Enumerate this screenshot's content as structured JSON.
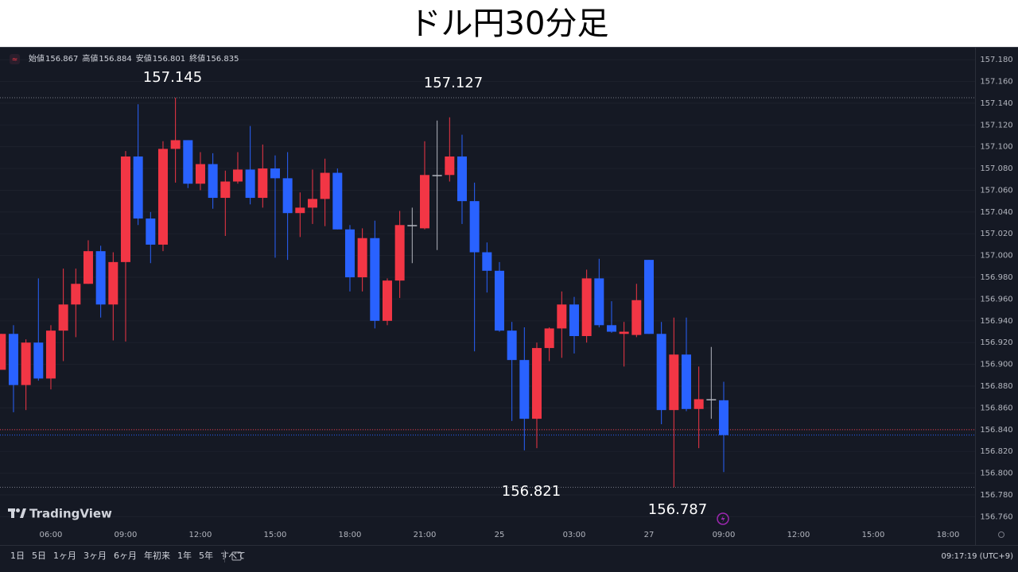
{
  "chart_data": {
    "type": "candlestick",
    "title": "ドル円30分足",
    "legend": [
      {
        "label": "始値",
        "value": 156.867
      },
      {
        "label": "高値",
        "value": 156.884
      },
      {
        "label": "安値",
        "value": 156.801
      },
      {
        "label": "終値",
        "value": 156.835
      }
    ],
    "categories": [
      null,
      null,
      null,
      null,
      "06:00",
      null,
      null,
      null,
      null,
      null,
      "09:00",
      null,
      null,
      null,
      null,
      null,
      "12:00",
      null,
      null,
      null,
      null,
      null,
      "15:00",
      null,
      null,
      null,
      null,
      null,
      "18:00",
      null,
      null,
      null,
      null,
      null,
      "21:00",
      null,
      null,
      null,
      null,
      null,
      "25",
      null,
      null,
      null,
      null,
      null,
      "03:00",
      null,
      null,
      null,
      null,
      null,
      "27",
      null,
      null,
      null,
      null,
      null,
      "09:00",
      null,
      null,
      null,
      null,
      null,
      "12:00",
      null,
      null,
      null,
      null,
      null,
      "15:00",
      null,
      null,
      null,
      null,
      null,
      "18:00"
    ],
    "open": [
      156.895,
      156.928,
      156.881,
      156.92,
      156.887,
      156.931,
      156.955,
      156.974,
      157.004,
      156.955,
      156.994,
      157.091,
      157.034,
      157.01,
      157.098,
      157.106,
      157.066,
      157.084,
      157.053,
      157.068,
      157.079,
      157.053,
      157.08,
      157.071,
      157.039,
      157.044,
      157.052,
      157.076,
      157.024,
      156.98,
      157.016,
      156.94,
      156.977,
      157.028,
      157.025,
      157.074,
      157.074,
      157.091,
      157.05,
      157.003,
      156.986,
      156.931,
      156.904,
      156.85,
      156.915,
      156.933,
      156.955,
      156.926,
      156.979,
      156.936,
      156.928,
      156.927,
      156.996,
      156.928,
      156.858,
      156.909,
      156.859,
      156.868,
      156.867,
      null,
      null,
      null,
      null,
      null,
      null,
      null,
      null,
      null,
      null,
      null,
      null,
      null,
      null,
      null,
      null,
      null,
      null
    ],
    "high": [
      156.928,
      156.936,
      156.923,
      156.979,
      156.936,
      156.988,
      156.988,
      157.014,
      157.009,
      157.003,
      157.096,
      157.139,
      157.04,
      157.105,
      157.145,
      157.106,
      157.095,
      157.094,
      157.078,
      157.095,
      157.119,
      157.102,
      157.092,
      157.095,
      157.058,
      157.079,
      157.089,
      157.08,
      157.028,
      157.025,
      157.032,
      156.979,
      157.041,
      157.044,
      157.105,
      157.124,
      157.127,
      157.111,
      157.067,
      157.012,
      156.994,
      156.939,
      156.934,
      156.92,
      156.934,
      156.967,
      156.962,
      156.987,
      156.997,
      156.958,
      156.939,
      156.974,
      156.996,
      156.939,
      156.943,
      156.943,
      156.898,
      156.916,
      156.884,
      null,
      null,
      null,
      null,
      null,
      null,
      null,
      null,
      null,
      null,
      null,
      null,
      null,
      null,
      null,
      null,
      null,
      null
    ],
    "low": [
      156.895,
      156.856,
      156.858,
      156.885,
      156.877,
      156.903,
      156.925,
      156.974,
      156.943,
      156.922,
      156.921,
      157.028,
      156.993,
      157.004,
      157.067,
      157.062,
      157.06,
      157.043,
      157.018,
      157.066,
      157.047,
      157.044,
      156.998,
      156.996,
      157.017,
      157.029,
      157.027,
      157.024,
      156.967,
      156.967,
      156.933,
      156.936,
      156.961,
      156.993,
      157.024,
      157.005,
      157.068,
      157.029,
      156.912,
      156.966,
      156.93,
      156.848,
      156.821,
      156.823,
      156.903,
      156.906,
      156.91,
      156.92,
      156.934,
      156.929,
      156.898,
      156.925,
      156.928,
      156.845,
      156.787,
      156.857,
      156.823,
      156.85,
      156.801,
      null,
      null,
      null,
      null,
      null,
      null,
      null,
      null,
      null,
      null,
      null,
      null,
      null,
      null,
      null,
      null,
      null,
      null
    ],
    "close": [
      156.928,
      156.881,
      156.92,
      156.887,
      156.931,
      156.955,
      156.974,
      157.004,
      156.955,
      156.994,
      157.091,
      157.034,
      157.01,
      157.098,
      157.106,
      157.066,
      157.084,
      157.053,
      157.068,
      157.079,
      157.053,
      157.08,
      157.071,
      157.039,
      157.044,
      157.052,
      157.076,
      157.024,
      156.98,
      157.016,
      156.94,
      156.977,
      157.028,
      157.028,
      157.074,
      157.074,
      157.091,
      157.05,
      157.003,
      156.986,
      156.931,
      156.904,
      156.85,
      156.915,
      156.933,
      156.955,
      156.926,
      156.979,
      156.936,
      156.93,
      156.93,
      156.959,
      156.928,
      156.858,
      156.909,
      156.859,
      156.868,
      156.868,
      156.835,
      null,
      null,
      null,
      null,
      null,
      null,
      null,
      null,
      null,
      null,
      null,
      null,
      null,
      null,
      null,
      null,
      null,
      null
    ],
    "up_color": "#f23645",
    "down_color": "#2962ff",
    "flat_color": "#b2b5be",
    "ylim": [
      156.753,
      157.191
    ],
    "yticks": [
      {
        "value": 157.18,
        "label": "157.180"
      },
      {
        "value": 157.16,
        "label": "157.160"
      },
      {
        "value": 157.14,
        "label": "157.140"
      },
      {
        "value": 157.12,
        "label": "157.120"
      },
      {
        "value": 157.1,
        "label": "157.100"
      },
      {
        "value": 157.08,
        "label": "157.080"
      },
      {
        "value": 157.06,
        "label": "157.060"
      },
      {
        "value": 157.04,
        "label": "157.040"
      },
      {
        "value": 157.02,
        "label": "157.020"
      },
      {
        "value": 157.0,
        "label": "157.000"
      },
      {
        "value": 156.98,
        "label": "156.980"
      },
      {
        "value": 156.96,
        "label": "156.960"
      },
      {
        "value": 156.94,
        "label": "156.940"
      },
      {
        "value": 156.92,
        "label": "156.920"
      },
      {
        "value": 156.9,
        "label": "156.900"
      },
      {
        "value": 156.88,
        "label": "156.880"
      },
      {
        "value": 156.86,
        "label": "156.860"
      },
      {
        "value": 156.84,
        "label": "156.840"
      },
      {
        "value": 156.82,
        "label": "156.820"
      },
      {
        "value": 156.8,
        "label": "156.800"
      },
      {
        "value": 156.78,
        "label": "156.780"
      },
      {
        "value": 156.76,
        "label": "156.760"
      }
    ],
    "grid": true,
    "high_labels": [
      157.145,
      157.127
    ],
    "low_labels": [
      156.821,
      156.787
    ],
    "price_lines": [
      {
        "value": 156.84,
        "color": "#f23645"
      },
      {
        "value": 156.835,
        "color": "#2962ff"
      }
    ]
  },
  "watermark": "TradingView",
  "toolbar": {
    "periods": [
      "1日",
      "5日",
      "1ヶ月",
      "3ヶ月",
      "6ヶ月",
      "年初来",
      "1年",
      "5年",
      "すべて"
    ],
    "clock": "09:17:19 (UTC+9)"
  }
}
